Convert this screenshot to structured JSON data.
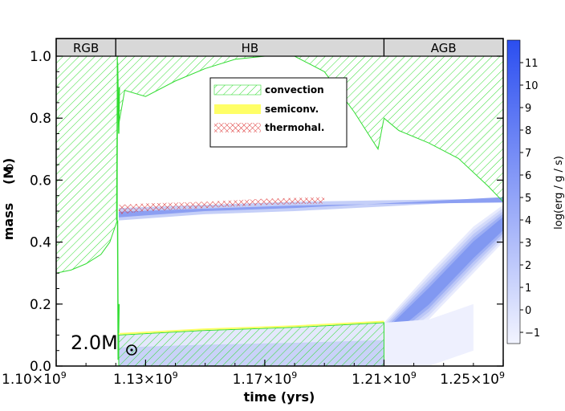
{
  "chart_data": {
    "type": "kippenhahn",
    "xlabel": "time (yrs)",
    "ylabel": "mass",
    "ylabel_unit": "(M",
    "ylabel_unit_close": ")",
    "xlim": [
      1100000000.0,
      1250000000.0
    ],
    "ylim": [
      0.0,
      1.0
    ],
    "x_ticks": [
      {
        "value": 1100000000.0,
        "label": "1.10×10",
        "exp": "9"
      },
      {
        "value": 1130000000.0,
        "label": "1.13×10",
        "exp": "9"
      },
      {
        "value": 1170000000.0,
        "label": "1.17×10",
        "exp": "9"
      },
      {
        "value": 1210000000.0,
        "label": "1.21×10",
        "exp": "9"
      },
      {
        "value": 1250000000.0,
        "label": "1.25×10",
        "exp": "9"
      }
    ],
    "y_ticks": [
      {
        "value": 0.0,
        "label": "0.0"
      },
      {
        "value": 0.2,
        "label": "0.2"
      },
      {
        "value": 0.4,
        "label": "0.4"
      },
      {
        "value": 0.6,
        "label": "0.6"
      },
      {
        "value": 0.8,
        "label": "0.8"
      },
      {
        "value": 1.0,
        "label": "1.0"
      }
    ],
    "phases": [
      {
        "label": "RGB",
        "start": 1100000000.0,
        "end": 1120000000.0
      },
      {
        "label": "HB",
        "start": 1120000000.0,
        "end": 1210000000.0
      },
      {
        "label": "AGB",
        "start": 1210000000.0,
        "end": 1250000000.0
      }
    ],
    "legend": [
      {
        "label": "convection",
        "kind": "convection"
      },
      {
        "label": "semiconv.",
        "kind": "semiconvection"
      },
      {
        "label": "thermohal.",
        "kind": "thermohaline"
      }
    ],
    "legend_position": "upper-center",
    "colorbar": {
      "label": "log(erg / g / s)",
      "min": -1.5,
      "max": 12,
      "ticks": [
        11,
        10,
        9,
        8,
        7,
        6,
        5,
        4,
        3,
        2,
        1,
        0,
        -1
      ]
    },
    "annotation": {
      "text": "2.0M",
      "position": "bottom-left"
    },
    "regions": {
      "convective_envelope": [
        [
          1100000000.0,
          1.0,
          0.3
        ],
        [
          1105000000.0,
          1.0,
          0.31
        ],
        [
          1110000000.0,
          1.0,
          0.33
        ],
        [
          1115000000.0,
          1.0,
          0.36
        ],
        [
          1118000000.0,
          1.0,
          0.4
        ],
        [
          1120500000.0,
          1.0,
          0.47
        ],
        [
          1121000000.0,
          0.98,
          0.78
        ],
        [
          1123000000.0,
          0.89,
          0.89
        ],
        [
          1130000000.0,
          0.87,
          0.87
        ],
        [
          1140000000.0,
          0.92,
          0.92
        ],
        [
          1150000000.0,
          0.96,
          0.96
        ],
        [
          1160000000.0,
          0.99,
          0.99
        ],
        [
          1170000000.0,
          1.0,
          1.0
        ],
        [
          1180000000.0,
          1.0,
          1.0
        ],
        [
          1190000000.0,
          0.95,
          0.95
        ],
        [
          1200000000.0,
          0.82,
          0.82
        ],
        [
          1208000000.0,
          0.7,
          0.7
        ],
        [
          1210000000.0,
          0.8,
          0.8
        ],
        [
          1215000000.0,
          0.76,
          0.76
        ],
        [
          1225000000.0,
          0.72,
          0.72
        ],
        [
          1235000000.0,
          0.67,
          0.67
        ],
        [
          1245000000.0,
          0.58,
          0.58
        ],
        [
          1250000000.0,
          0.53,
          0.53
        ]
      ],
      "convective_core": [
        [
          1121000000.0,
          0.1
        ],
        [
          1150000000.0,
          0.115
        ],
        [
          1180000000.0,
          0.125
        ],
        [
          1210000000.0,
          0.14
        ]
      ],
      "thermohaline": [
        [
          1121000000.0,
          0.49,
          0.52
        ],
        [
          1130000000.0,
          0.5,
          0.525
        ],
        [
          1150000000.0,
          0.51,
          0.53
        ],
        [
          1170000000.0,
          0.52,
          0.54
        ],
        [
          1190000000.0,
          0.525,
          0.545
        ]
      ],
      "burning_shell": [
        [
          1121000000.0,
          0.47,
          0.51
        ],
        [
          1150000000.0,
          0.49,
          0.52
        ],
        [
          1180000000.0,
          0.5,
          0.53
        ],
        [
          1210000000.0,
          0.515,
          0.535
        ],
        [
          1250000000.0,
          0.535,
          0.54
        ]
      ],
      "agb_helium_shell": [
        [
          1210000000.0,
          0.05,
          0.14
        ],
        [
          1225000000.0,
          0.15,
          0.3
        ],
        [
          1240000000.0,
          0.3,
          0.45
        ],
        [
          1250000000.0,
          0.4,
          0.52
        ]
      ],
      "core_burning": [
        [
          1121000000.0,
          0.0,
          0.1
        ],
        [
          1150000000.0,
          0.0,
          0.115
        ],
        [
          1180000000.0,
          0.0,
          0.125
        ],
        [
          1210000000.0,
          0.0,
          0.14
        ]
      ]
    },
    "colors": {
      "convection": "#33dd33",
      "semiconvection": "#ffff66",
      "thermohaline": "#dd3333",
      "energy_max": "#2b4ef0",
      "energy_min": "#f2f4ff",
      "phase_bar": "#d8d8d8"
    }
  }
}
